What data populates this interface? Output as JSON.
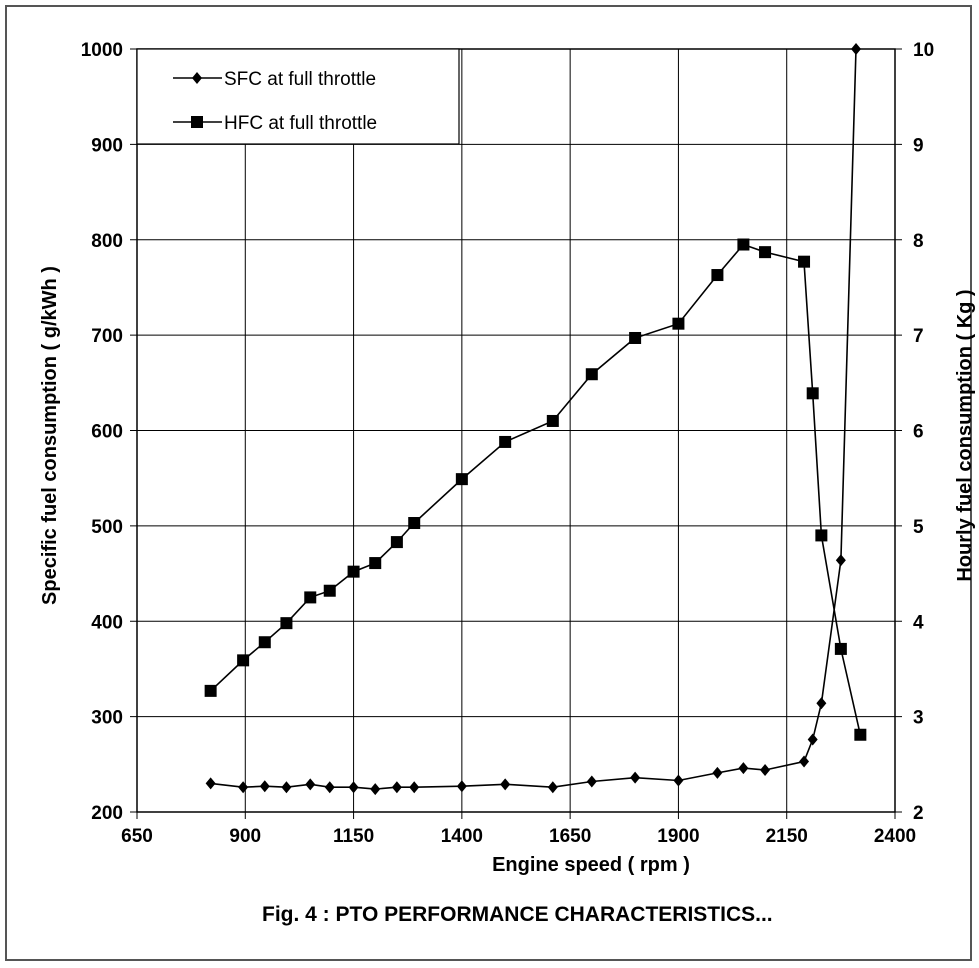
{
  "caption": "Fig. 4 : PTO PERFORMANCE CHARACTERISTICS...",
  "colors": {
    "line": "#000000",
    "grid": "#000000",
    "background": "#ffffff"
  },
  "chart_data": {
    "type": "line",
    "title": "",
    "xlabel": "Engine speed ( rpm )",
    "ylabel_left": "Specific fuel consumption ( g/kWh )",
    "ylabel_right": "Hourly fuel consumption ( Kg )",
    "xlim": [
      650,
      2400
    ],
    "ylim_left": [
      200,
      1000
    ],
    "ylim_right": [
      2,
      10
    ],
    "x_ticks": [
      "650",
      "900",
      "1150",
      "1400",
      "1650",
      "1900",
      "2150",
      "2400"
    ],
    "y_left_ticks": [
      "200",
      "300",
      "400",
      "500",
      "600",
      "700",
      "800",
      "900",
      "1000"
    ],
    "y_right_ticks": [
      "2",
      "3",
      "4",
      "5",
      "6",
      "7",
      "8",
      "9",
      "10"
    ],
    "grid": true,
    "legend_position": "top-left",
    "series": [
      {
        "name": "SFC at full throttle",
        "axis": "left",
        "marker": "diamond",
        "x": [
          820,
          895,
          945,
          995,
          1050,
          1095,
          1150,
          1200,
          1250,
          1290,
          1400,
          1500,
          1610,
          1700,
          1800,
          1900,
          1990,
          2050,
          2100,
          2190,
          2210,
          2230,
          2275,
          2310
        ],
        "y": [
          230,
          226,
          227,
          226,
          229,
          226,
          226,
          224,
          226,
          226,
          227,
          229,
          226,
          232,
          236,
          233,
          241,
          246,
          244,
          253,
          276,
          314,
          464,
          1000
        ]
      },
      {
        "name": "HFC at full throttle",
        "axis": "right",
        "marker": "square",
        "x": [
          820,
          895,
          945,
          995,
          1050,
          1095,
          1150,
          1200,
          1250,
          1290,
          1400,
          1500,
          1610,
          1700,
          1800,
          1900,
          1990,
          2050,
          2100,
          2190,
          2210,
          2230,
          2275,
          2320
        ],
        "y": [
          3.27,
          3.59,
          3.78,
          3.98,
          4.25,
          4.32,
          4.52,
          4.61,
          4.83,
          5.03,
          5.49,
          5.88,
          6.1,
          6.59,
          6.97,
          7.12,
          7.63,
          7.95,
          7.87,
          7.77,
          6.39,
          4.9,
          3.71,
          2.81
        ]
      }
    ]
  }
}
